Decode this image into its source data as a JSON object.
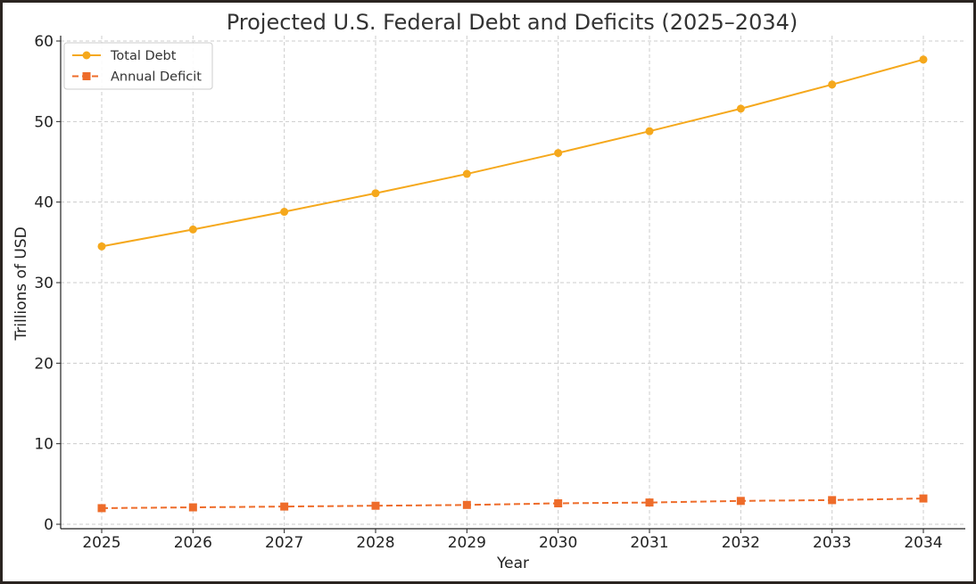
{
  "chart_data": {
    "type": "line",
    "title": "Projected U.S. Federal Debt and Deficits (2025–2034)",
    "xlabel": "Year",
    "ylabel": "Trillions of USD",
    "x": [
      "2025",
      "2026",
      "2027",
      "2028",
      "2029",
      "2030",
      "2031",
      "2032",
      "2033",
      "2034"
    ],
    "ylim": [
      0,
      60
    ],
    "yticks": [
      "0",
      "10",
      "20",
      "30",
      "40",
      "50",
      "60"
    ],
    "grid": true,
    "legend_position": "top-left",
    "series": [
      {
        "name": "Total Debt",
        "color": "#f5a81c",
        "marker": "circle",
        "line_style": "solid",
        "values": [
          34.5,
          36.6,
          38.8,
          41.1,
          43.5,
          46.1,
          48.8,
          51.6,
          54.6,
          57.7
        ]
      },
      {
        "name": "Annual Deficit",
        "color": "#ee6c2a",
        "marker": "square",
        "line_style": "dashed",
        "values": [
          2.0,
          2.1,
          2.2,
          2.3,
          2.4,
          2.6,
          2.7,
          2.9,
          3.0,
          3.2
        ]
      }
    ]
  }
}
